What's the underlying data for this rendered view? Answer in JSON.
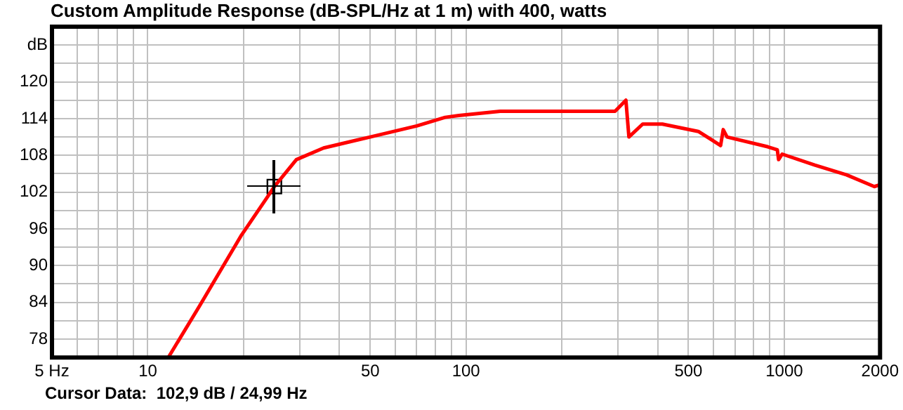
{
  "chart_data": {
    "type": "line",
    "title": "Custom Amplitude Response (dB-SPL/Hz at 1 m) with 400, watts",
    "log": "x",
    "grid": true,
    "marker": "none",
    "line_style": "solid",
    "legend": false,
    "xlim": [
      5,
      2000
    ],
    "xticks": [
      {
        "value": 5,
        "label": "5 Hz"
      },
      {
        "value": 6,
        "label": null
      },
      {
        "value": 7,
        "label": null
      },
      {
        "value": 8,
        "label": null
      },
      {
        "value": 9,
        "label": null
      },
      10,
      {
        "value": 20,
        "label": null
      },
      {
        "value": 30,
        "label": null
      },
      {
        "value": 40,
        "label": null
      },
      50,
      {
        "value": 60,
        "label": null
      },
      {
        "value": 70,
        "label": null
      },
      {
        "value": 80,
        "label": null
      },
      {
        "value": 90,
        "label": null
      },
      100,
      {
        "value": 200,
        "label": null
      },
      {
        "value": 300,
        "label": null
      },
      {
        "value": 400,
        "label": null
      },
      500,
      {
        "value": 600,
        "label": null
      },
      {
        "value": 700,
        "label": null
      },
      {
        "value": 800,
        "label": null
      },
      {
        "value": 900,
        "label": null
      },
      1000,
      2000
    ],
    "ylim": [
      75,
      129
    ],
    "yticks": [
      78,
      {
        "value": 81,
        "label": null
      },
      84,
      {
        "value": 87,
        "label": null
      },
      90,
      {
        "value": 93,
        "label": null
      },
      96,
      {
        "value": 99,
        "label": null
      },
      102,
      {
        "value": 105,
        "label": null
      },
      108,
      {
        "value": 111,
        "label": null
      },
      114,
      {
        "value": 117,
        "label": null
      },
      120,
      {
        "value": 123,
        "label": null
      },
      {
        "value": 126,
        "label": "dB"
      }
    ],
    "series": [
      {
        "color": "#ff0000",
        "x": [
          11.6,
          14.5,
          19.6,
          23.7,
          24.99,
          29.3,
          35.7,
          50,
          70,
          86,
          95,
          128,
          211,
          294,
          318,
          325,
          359,
          414,
          537,
          631,
          643,
          661,
          887,
          951,
          960,
          985,
          1247,
          1571,
          1919,
          2000
        ],
        "values": [
          75,
          83.3,
          94.8,
          101.1,
          102.9,
          107.3,
          109.2,
          111,
          112.8,
          114.2,
          114.5,
          115.2,
          115.2,
          115.2,
          117,
          111,
          113.1,
          113.1,
          111.9,
          109.6,
          112.2,
          111,
          109.4,
          108.9,
          107.3,
          108.2,
          106.4,
          104.8,
          102.9,
          103.2
        ]
      },
      {
        "type": "scatter",
        "marker": "square",
        "color": "#000000",
        "x": [
          24.99
        ],
        "values": [
          102.9
        ]
      }
    ],
    "annotations": [
      "Cursor Data:  102,9 dB / 24,99 Hz"
    ]
  }
}
